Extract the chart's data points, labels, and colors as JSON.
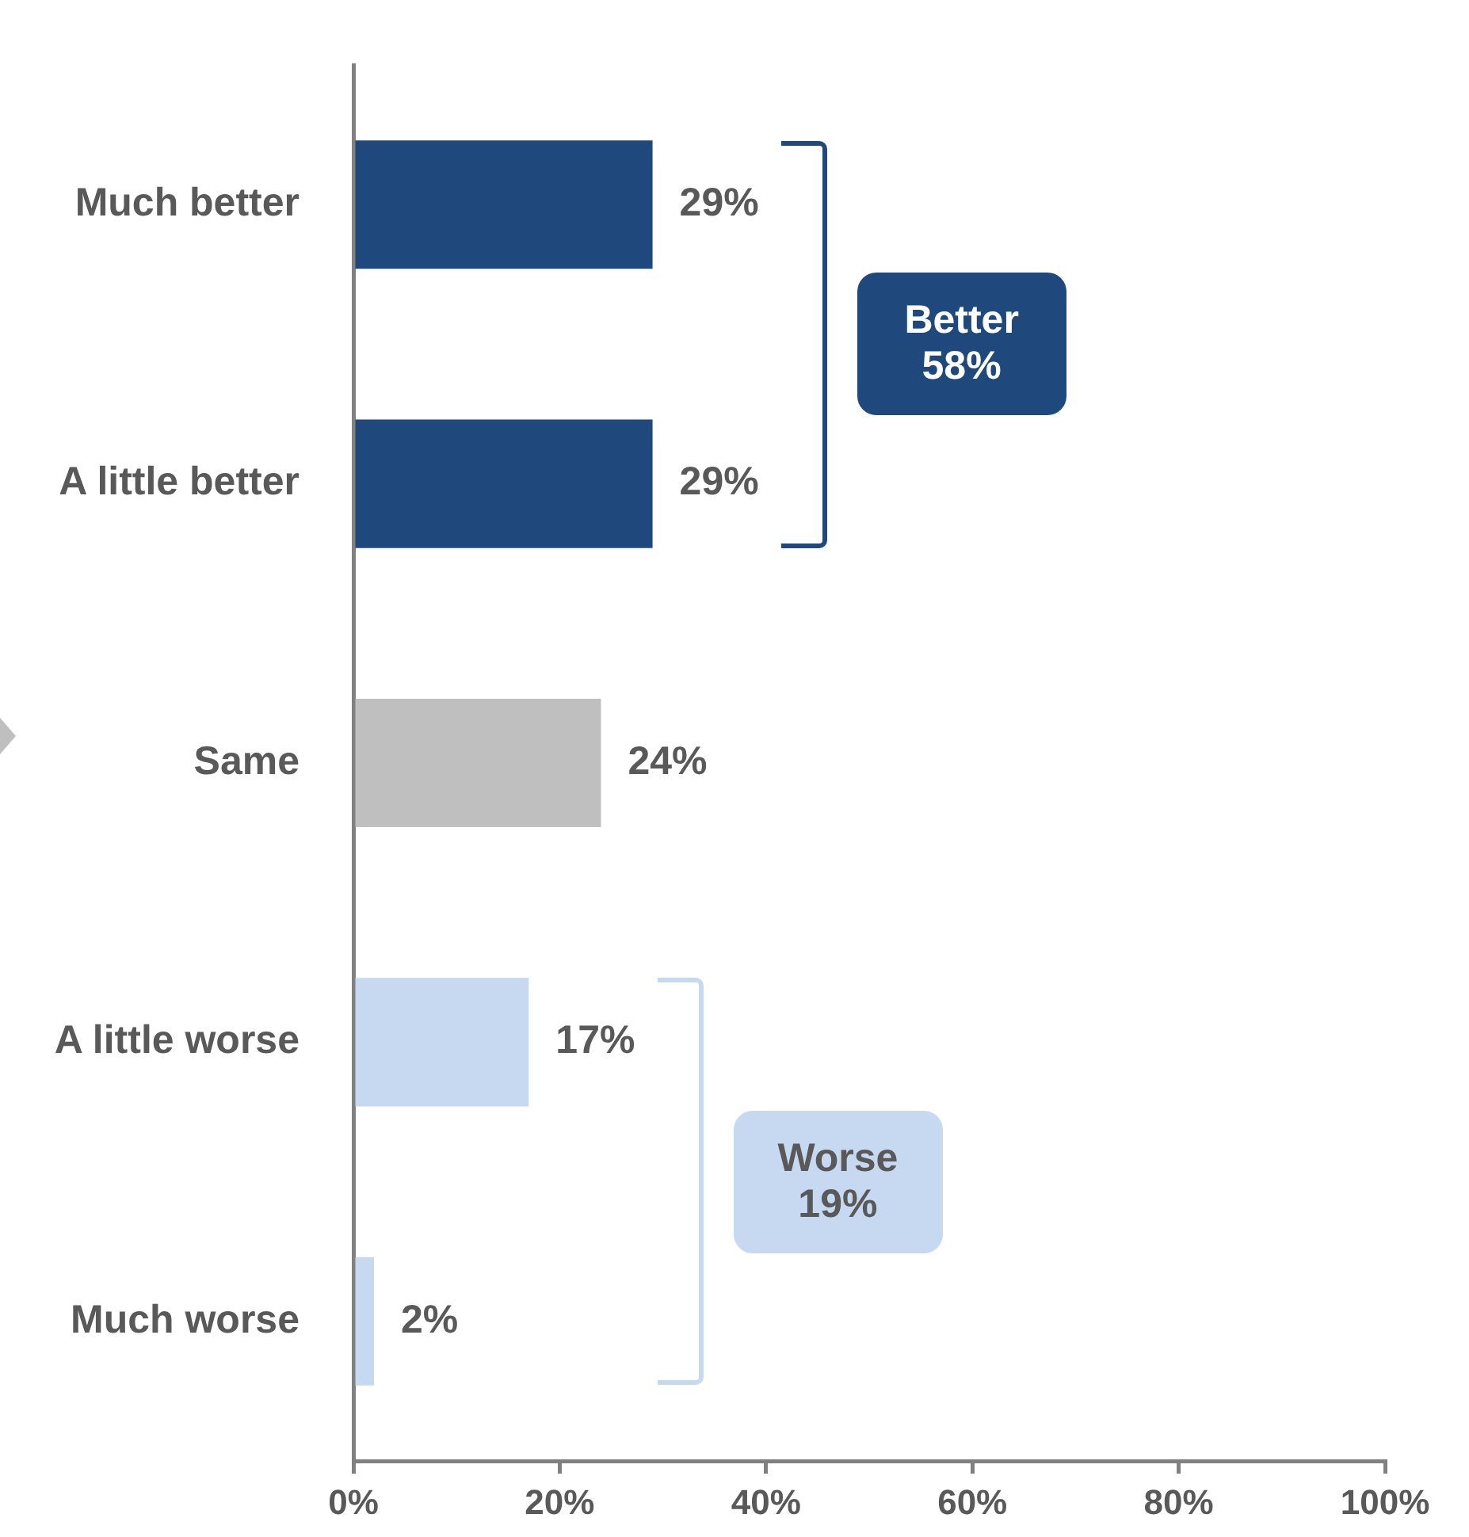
{
  "chart_data": {
    "type": "bar",
    "orientation": "horizontal",
    "categories": [
      "Much better",
      "A little better",
      "Same",
      "A little worse",
      "Much worse"
    ],
    "values": [
      29,
      29,
      24,
      17,
      2
    ],
    "colors": [
      "#1f497d",
      "#1f497d",
      "#bfbfbf",
      "#c6d9f1",
      "#c6d9f1"
    ],
    "value_labels": [
      "29%",
      "29%",
      "24%",
      "17%",
      "2%"
    ],
    "xlim": [
      0,
      100
    ],
    "xticks": [
      {
        "value": 0,
        "label": "0%"
      },
      {
        "value": 20,
        "label": "20%"
      },
      {
        "value": 40,
        "label": "40%"
      },
      {
        "value": 60,
        "label": "60%"
      },
      {
        "value": 80,
        "label": "80%"
      },
      {
        "value": 100,
        "label": "100%"
      }
    ],
    "grid": false,
    "legend": false,
    "annotations": [
      "Better 58%",
      "Worse 19%"
    ]
  }
}
